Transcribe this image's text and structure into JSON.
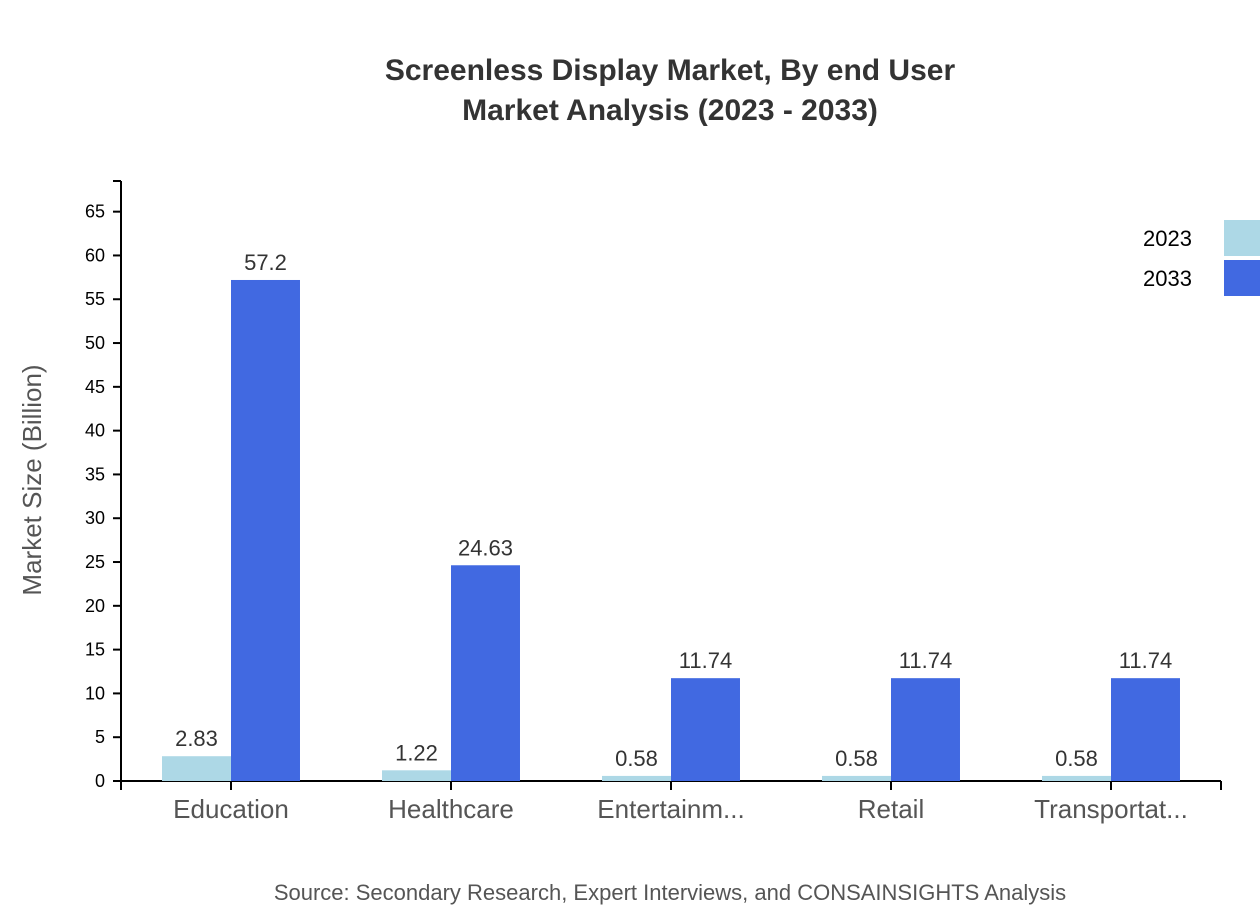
{
  "chart_data": {
    "type": "bar",
    "title": "Screenless Display Market, By end User",
    "subtitle": "Market Analysis (2023 - 2033)",
    "xlabel": "",
    "ylabel": "Market Size (Billion)",
    "ylim": [
      0,
      68.5
    ],
    "yticks": [
      0,
      5,
      10,
      15,
      20,
      25,
      30,
      35,
      40,
      45,
      50,
      55,
      60,
      65
    ],
    "grid": false,
    "legend_position": "top-right",
    "categories": [
      "Education",
      "Healthcare",
      "Entertainm...",
      "Retail",
      "Transportat..."
    ],
    "series": [
      {
        "name": "2023",
        "color": "#ADD8E6",
        "values": [
          2.83,
          1.22,
          0.58,
          0.58,
          0.58
        ]
      },
      {
        "name": "2033",
        "color": "#4169E1",
        "values": [
          57.2,
          24.63,
          11.74,
          11.74,
          11.74
        ]
      }
    ],
    "source": "Source: Secondary Research, Expert Interviews, and CONSAINSIGHTS Analysis"
  }
}
